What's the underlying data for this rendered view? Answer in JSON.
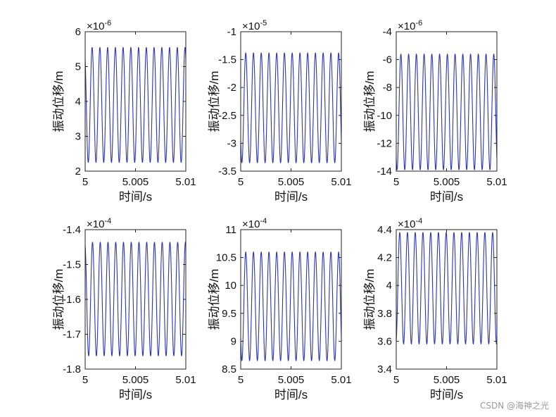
{
  "colors": {
    "series": "#2b35b5",
    "background": "#ffffff",
    "axes": "#222222"
  },
  "watermark": "CSDN @海神之光",
  "chart_data": [
    {
      "type": "line",
      "title": "",
      "xlabel": "时间/s",
      "ylabel": "振动位移/m",
      "exponent": "10",
      "exponent_power": "-6",
      "xlim": [
        5,
        5.01
      ],
      "ylim": [
        2,
        6
      ],
      "xticks": [
        5,
        5.005,
        5.01
      ],
      "xtick_labels": [
        "5",
        "5.005",
        "5.01"
      ],
      "yticks": [
        2,
        3,
        4,
        5,
        6
      ],
      "ytick_labels": [
        "2",
        "3",
        "4",
        "5",
        "6"
      ],
      "series": [
        {
          "name": "振动位移",
          "min": 2.25,
          "max": 5.55,
          "cycles": 13,
          "phase": 0.1
        }
      ]
    },
    {
      "type": "line",
      "title": "",
      "xlabel": "时间/s",
      "ylabel": "振动位移/m",
      "exponent": "10",
      "exponent_power": "-5",
      "xlim": [
        5,
        5.01
      ],
      "ylim": [
        -3.5,
        -1
      ],
      "xticks": [
        5,
        5.005,
        5.01
      ],
      "xtick_labels": [
        "5",
        "5.005",
        "5.01"
      ],
      "yticks": [
        -3.5,
        -3,
        -2.5,
        -2,
        -1.5,
        -1
      ],
      "ytick_labels": [
        "-3.5",
        "-3",
        "-2.5",
        "-2",
        "-1.5",
        "-1"
      ],
      "series": [
        {
          "name": "振动位移",
          "min": -3.35,
          "max": -1.38,
          "cycles": 13,
          "phase": 0.35
        }
      ]
    },
    {
      "type": "line",
      "title": "",
      "xlabel": "时间/s",
      "ylabel": "振动位移/m",
      "exponent": "10",
      "exponent_power": "-6",
      "xlim": [
        5,
        5.01
      ],
      "ylim": [
        -14,
        -4
      ],
      "xticks": [
        5,
        5.005,
        5.01
      ],
      "xtick_labels": [
        "5",
        "5.005",
        "5.01"
      ],
      "yticks": [
        -14,
        -12,
        -10,
        -8,
        -6,
        -4
      ],
      "ytick_labels": [
        "-14",
        "-12",
        "-10",
        "-8",
        "-6",
        "-4"
      ],
      "series": [
        {
          "name": "振动位移",
          "min": -13.9,
          "max": -5.6,
          "cycles": 13,
          "phase": 0.4
        }
      ]
    },
    {
      "type": "line",
      "title": "",
      "xlabel": "时间/s",
      "ylabel": "振动位移/m",
      "exponent": "10",
      "exponent_power": "-4",
      "xlim": [
        5,
        5.01
      ],
      "ylim": [
        -1.8,
        -1.4
      ],
      "xticks": [
        5,
        5.005,
        5.01
      ],
      "xtick_labels": [
        "5",
        "5.005",
        "5.01"
      ],
      "yticks": [
        -1.8,
        -1.7,
        -1.6,
        -1.5,
        -1.4
      ],
      "ytick_labels": [
        "-1.8",
        "-1.7",
        "-1.6",
        "-1.5",
        "-1.4"
      ],
      "series": [
        {
          "name": "振动位移",
          "min": -1.762,
          "max": -1.436,
          "cycles": 13,
          "phase": 0.05
        }
      ]
    },
    {
      "type": "line",
      "title": "",
      "xlabel": "时间/s",
      "ylabel": "振动位移/m",
      "exponent": "10",
      "exponent_power": "-4",
      "xlim": [
        5,
        5.01
      ],
      "ylim": [
        8.5,
        11
      ],
      "xticks": [
        5,
        5.005,
        5.01
      ],
      "xtick_labels": [
        "5",
        "5.005",
        "5.01"
      ],
      "yticks": [
        8.5,
        9,
        9.5,
        10,
        10.5,
        11
      ],
      "ytick_labels": [
        "8.5",
        "9",
        "9.5",
        "10",
        "10.5",
        "11"
      ],
      "series": [
        {
          "name": "振动位移",
          "min": 8.65,
          "max": 10.6,
          "cycles": 13,
          "phase": 0.35
        }
      ]
    },
    {
      "type": "line",
      "title": "",
      "xlabel": "时间/s",
      "ylabel": "振动位移/m",
      "exponent": "10",
      "exponent_power": "-4",
      "xlim": [
        5,
        5.01
      ],
      "ylim": [
        3.4,
        4.4
      ],
      "xticks": [
        5,
        5.005,
        5.01
      ],
      "xtick_labels": [
        "5",
        "5.005",
        "5.01"
      ],
      "yticks": [
        3.4,
        3.6,
        3.8,
        4,
        4.2,
        4.4
      ],
      "ytick_labels": [
        "3.4",
        "3.6",
        "3.8",
        "4",
        "4.2",
        "4.4"
      ],
      "series": [
        {
          "name": "振动位移",
          "min": 3.58,
          "max": 4.38,
          "cycles": 13,
          "phase": 0.55
        }
      ]
    }
  ]
}
